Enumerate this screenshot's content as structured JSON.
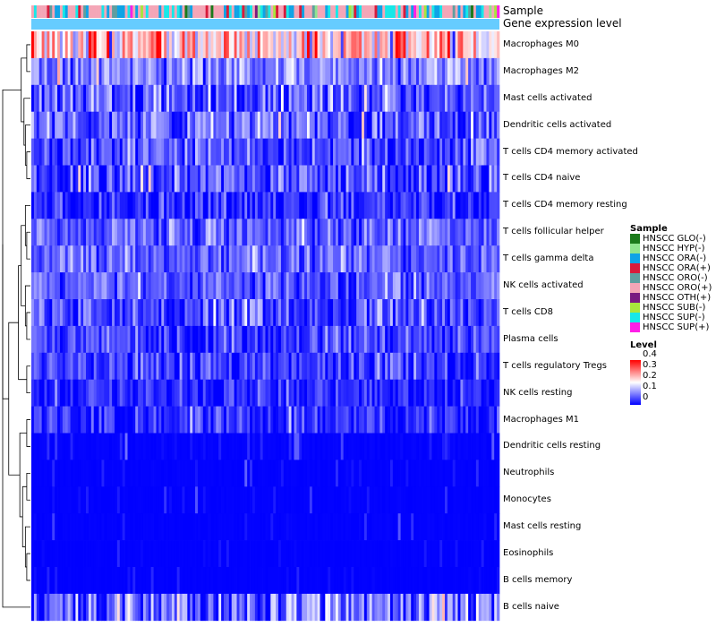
{
  "annotation_labels": [
    "Sample",
    "Gene expression level"
  ],
  "legend_sample": {
    "title": "Sample",
    "entries": [
      {
        "label": "HNSCC GLO(-)",
        "color": "#1a7a1a"
      },
      {
        "label": "HNSCC HYP(-)",
        "color": "#8fe58f"
      },
      {
        "label": "HNSCC ORA(-)",
        "color": "#0fa3e6"
      },
      {
        "label": "HNSCC ORA(+)",
        "color": "#d81b3c"
      },
      {
        "label": "HNSCC ORO(-)",
        "color": "#5f9ea0"
      },
      {
        "label": "HNSCC ORO(+)",
        "color": "#f4a6b7"
      },
      {
        "label": "HNSCC OTH(+)",
        "color": "#7a1a80"
      },
      {
        "label": "HNSCC SUB(-)",
        "color": "#a8e63c"
      },
      {
        "label": "HNSCC SUP(-)",
        "color": "#17e8e8"
      },
      {
        "label": "HNSCC SUP(+)",
        "color": "#ff1ee8"
      }
    ]
  },
  "legend_level": {
    "title": "Level",
    "ticks": [
      "0.4",
      "0.3",
      "0.2",
      "0.1",
      "0"
    ]
  },
  "chart_data": {
    "type": "heatmap",
    "title": "",
    "columns": 180,
    "color_scale": {
      "min": 0,
      "max": 0.4,
      "low": "#0000ff",
      "mid": "#ffffff",
      "high": "#ff0000"
    },
    "gene_expression_color": "#66ccff",
    "sample_groups": [
      "HNSCC GLO(-)",
      "HNSCC HYP(-)",
      "HNSCC ORA(-)",
      "HNSCC ORA(+)",
      "HNSCC ORO(-)",
      "HNSCC ORO(+)",
      "HNSCC OTH(+)",
      "HNSCC SUB(-)",
      "HNSCC SUP(-)",
      "HNSCC SUP(+)"
    ],
    "sample_weights": [
      2,
      3,
      18,
      8,
      8,
      38,
      2,
      3,
      16,
      2
    ],
    "rows": [
      {
        "name": "Macrophages M0",
        "mean": 0.24,
        "sd": 0.09
      },
      {
        "name": "Macrophages M2",
        "mean": 0.11,
        "sd": 0.05
      },
      {
        "name": "Mast cells activated",
        "mean": 0.07,
        "sd": 0.06
      },
      {
        "name": "Dendritic cells activated",
        "mean": 0.08,
        "sd": 0.06
      },
      {
        "name": "T cells CD4 memory activated",
        "mean": 0.06,
        "sd": 0.05
      },
      {
        "name": "T cells CD4 naive",
        "mean": 0.06,
        "sd": 0.06
      },
      {
        "name": "T cells CD4 memory resting",
        "mean": 0.03,
        "sd": 0.04
      },
      {
        "name": "T cells follicular helper",
        "mean": 0.08,
        "sd": 0.04
      },
      {
        "name": "T cells gamma delta",
        "mean": 0.08,
        "sd": 0.04
      },
      {
        "name": "NK cells activated",
        "mean": 0.07,
        "sd": 0.04
      },
      {
        "name": "T cells CD8",
        "mean": 0.05,
        "sd": 0.05
      },
      {
        "name": "Plasma cells",
        "mean": 0.05,
        "sd": 0.04
      },
      {
        "name": "T cells regulatory  Tregs",
        "mean": 0.05,
        "sd": 0.04
      },
      {
        "name": "NK cells resting",
        "mean": 0.03,
        "sd": 0.035
      },
      {
        "name": "Macrophages M1",
        "mean": 0.03,
        "sd": 0.04
      },
      {
        "name": "Dendritic cells resting",
        "mean": 0.015,
        "sd": 0.03
      },
      {
        "name": "Neutrophils",
        "mean": 0.01,
        "sd": 0.025
      },
      {
        "name": "Monocytes",
        "mean": 0.008,
        "sd": 0.02
      },
      {
        "name": "Mast cells resting",
        "mean": 0.01,
        "sd": 0.025
      },
      {
        "name": "Eosinophils",
        "mean": 0.005,
        "sd": 0.015
      },
      {
        "name": "B cells memory",
        "mean": 0.006,
        "sd": 0.015
      },
      {
        "name": "B cells naive",
        "mean": 0.08,
        "sd": 0.08
      }
    ]
  }
}
